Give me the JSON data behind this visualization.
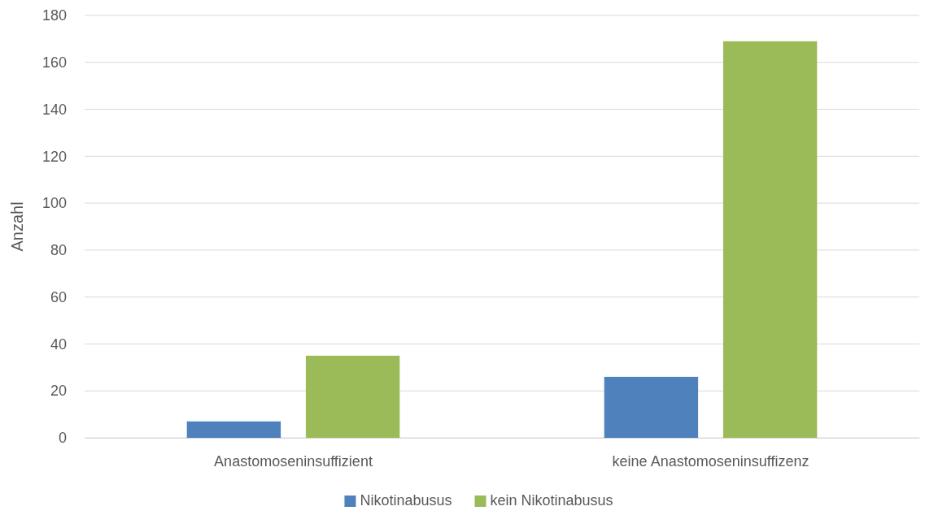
{
  "chart_data": {
    "type": "bar",
    "ylabel": "Anzahl",
    "categories": [
      "Anastomoseninsuffizient",
      "keine Anastomoseninsuffizenz"
    ],
    "series": [
      {
        "name": "Nikotinabusus",
        "color": "#4f81bd",
        "values": [
          7,
          26
        ]
      },
      {
        "name": "kein Nikotinabusus",
        "color": "#9bbb59",
        "values": [
          35,
          169
        ]
      }
    ],
    "ylim": [
      0,
      180
    ],
    "yticks": [
      0,
      20,
      40,
      60,
      80,
      100,
      120,
      140,
      160,
      180
    ],
    "grid": "y",
    "legend": "bottom"
  }
}
